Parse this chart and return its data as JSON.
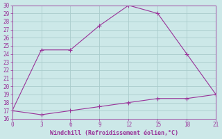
{
  "line1_x": [
    0,
    3,
    6,
    9,
    12,
    15,
    18,
    21
  ],
  "line1_y": [
    17,
    24.5,
    24.5,
    27.5,
    30,
    29,
    24,
    19
  ],
  "line2_x": [
    0,
    3,
    6,
    9,
    12,
    15,
    18,
    21
  ],
  "line2_y": [
    17,
    16.5,
    17,
    17.5,
    18,
    18.5,
    18.5,
    19
  ],
  "color": "#993399",
  "bg_color": "#cce8e8",
  "grid_color": "#aacccc",
  "xlabel": "Windchill (Refroidissement éolien,°C)",
  "xlim": [
    0,
    21
  ],
  "ylim": [
    16,
    30
  ],
  "xticks": [
    0,
    3,
    6,
    9,
    12,
    15,
    18,
    21
  ],
  "yticks": [
    16,
    17,
    18,
    19,
    20,
    21,
    22,
    23,
    24,
    25,
    26,
    27,
    28,
    29,
    30
  ],
  "marker": "+",
  "markersize": 5,
  "linewidth": 0.8
}
